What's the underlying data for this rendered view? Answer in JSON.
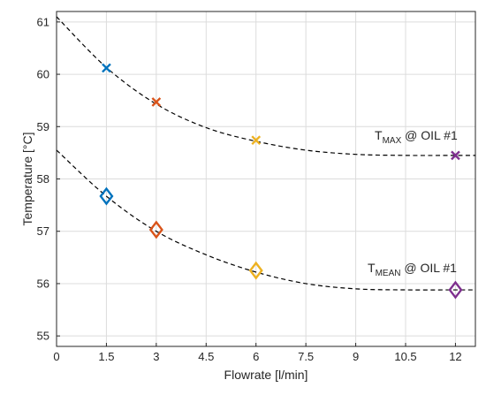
{
  "chart_data": {
    "type": "scatter",
    "xlabel": "Flowrate [l/min]",
    "ylabel": "Temperature [°C]",
    "xlim": [
      0,
      12.6
    ],
    "ylim": [
      54.8,
      61.2
    ],
    "xticks": [
      0,
      1.5,
      3,
      4.5,
      6,
      7.5,
      9,
      10.5,
      12
    ],
    "xtick_labels": [
      "0",
      "1.5",
      "3",
      "4.5",
      "6",
      "7.5",
      "9",
      "10.5",
      "12"
    ],
    "yticks": [
      55,
      56,
      57,
      58,
      59,
      60,
      61
    ],
    "ytick_labels": [
      "55",
      "56",
      "57",
      "58",
      "59",
      "60",
      "61"
    ],
    "grid": true,
    "point_colors": [
      "#0072BD",
      "#D95319",
      "#EDB120",
      "#7E2F8E"
    ],
    "series": [
      {
        "marker": "x",
        "annotation": {
          "main": "T",
          "sub": "MAX",
          "rest": " @ OIL #1"
        },
        "x": [
          1.5,
          3,
          6,
          12
        ],
        "y": [
          60.12,
          59.47,
          58.74,
          58.45
        ],
        "fit": {
          "x": [
            0,
            1.5,
            3,
            4.5,
            6,
            7.5,
            9,
            10.5,
            12,
            12.6
          ],
          "y": [
            61.1,
            60.13,
            59.43,
            58.98,
            58.72,
            58.55,
            58.47,
            58.45,
            58.45,
            58.45
          ]
        }
      },
      {
        "marker": "diamond",
        "annotation": {
          "main": "T",
          "sub": "MEAN",
          "rest": " @ OIL #1"
        },
        "x": [
          1.5,
          3,
          6,
          12
        ],
        "y": [
          57.67,
          57.03,
          56.25,
          55.88
        ],
        "fit": {
          "x": [
            0,
            1.5,
            3,
            4.5,
            6,
            7.5,
            9,
            10.5,
            12,
            12.6
          ],
          "y": [
            58.55,
            57.67,
            57.0,
            56.55,
            56.22,
            56.0,
            55.9,
            55.88,
            55.88,
            55.88
          ]
        }
      }
    ]
  }
}
